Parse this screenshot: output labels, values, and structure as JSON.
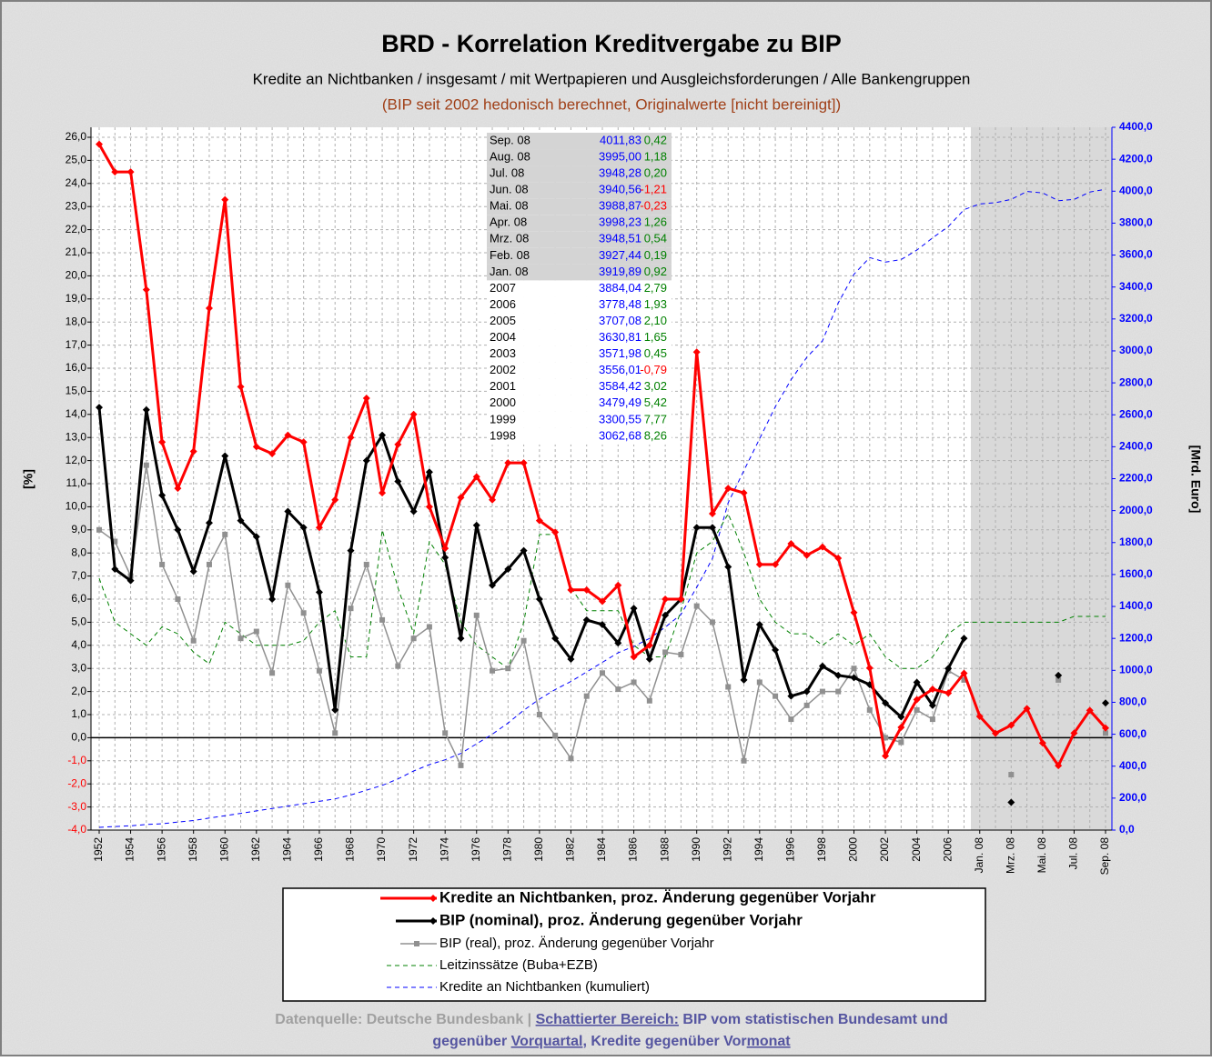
{
  "chart_data": {
    "type": "line",
    "title": "BRD - Korrelation Kreditvergabe zu BIP",
    "subtitle": "Kredite an Nichtbanken / insgesamt / mit Wertpapieren und Ausgleichsforderungen / Alle Bankengruppen",
    "subtitle2": "(BIP seit 2002 hedonisch berechnet, Originalwerte [nicht bereinigt])",
    "y_label": "[%]",
    "y2_label": "[Mrd. Euro]",
    "categories": [
      "1952",
      null,
      "1954",
      null,
      "1956",
      null,
      "1958",
      null,
      "1960",
      null,
      "1962",
      null,
      "1964",
      null,
      "1966",
      null,
      "1968",
      null,
      "1970",
      null,
      "1972",
      null,
      "1974",
      null,
      "1976",
      null,
      "1978",
      null,
      "1980",
      null,
      "1982",
      null,
      "1984",
      null,
      "1986",
      null,
      "1988",
      null,
      "1990",
      null,
      "1992",
      null,
      "1994",
      null,
      "1996",
      null,
      "1998",
      null,
      "2000",
      null,
      "2002",
      null,
      "2004",
      null,
      "2006",
      null,
      "Jan. 08",
      null,
      "Mrz. 08",
      null,
      "Mai. 08",
      null,
      "Jul. 08",
      null,
      "Sep. 08"
    ],
    "ylim": [
      -4,
      26
    ],
    "yticks": [
      {
        "value": -4,
        "label": "-4,0"
      },
      {
        "value": -3,
        "label": "-3,0"
      },
      {
        "value": -2,
        "label": "-2,0"
      },
      {
        "value": -1,
        "label": "-1,0"
      },
      {
        "value": 0,
        "label": "0,0"
      },
      {
        "value": 1,
        "label": "1,0"
      },
      {
        "value": 2,
        "label": "2,0"
      },
      {
        "value": 3,
        "label": "3,0"
      },
      {
        "value": 4,
        "label": "4,0"
      },
      {
        "value": 5,
        "label": "5,0"
      },
      {
        "value": 6,
        "label": "6,0"
      },
      {
        "value": 7,
        "label": "7,0"
      },
      {
        "value": 8,
        "label": "8,0"
      },
      {
        "value": 9,
        "label": "9,0"
      },
      {
        "value": 10,
        "label": "10,0"
      },
      {
        "value": 11,
        "label": "11,0"
      },
      {
        "value": 12,
        "label": "12,0"
      },
      {
        "value": 13,
        "label": "13,0"
      },
      {
        "value": 14,
        "label": "14,0"
      },
      {
        "value": 15,
        "label": "15,0"
      },
      {
        "value": 16,
        "label": "16,0"
      },
      {
        "value": 17,
        "label": "17,0"
      },
      {
        "value": 18,
        "label": "18,0"
      },
      {
        "value": 19,
        "label": "19,0"
      },
      {
        "value": 20,
        "label": "20,0"
      },
      {
        "value": 21,
        "label": "21,0"
      },
      {
        "value": 22,
        "label": "22,0"
      },
      {
        "value": 23,
        "label": "23,0"
      },
      {
        "value": 24,
        "label": "24,0"
      },
      {
        "value": 25,
        "label": "25,0"
      },
      {
        "value": 26,
        "label": "26,0"
      }
    ],
    "y2lim": [
      0,
      4400
    ],
    "y2ticks": [
      {
        "value": 0,
        "label": "0,0"
      },
      {
        "value": 200,
        "label": "200,0"
      },
      {
        "value": 400,
        "label": "400,0"
      },
      {
        "value": 600,
        "label": "600,0"
      },
      {
        "value": 800,
        "label": "800,0"
      },
      {
        "value": 1000,
        "label": "1000,0"
      },
      {
        "value": 1200,
        "label": "1200,0"
      },
      {
        "value": 1400,
        "label": "1400,0"
      },
      {
        "value": 1600,
        "label": "1600,0"
      },
      {
        "value": 1800,
        "label": "1800,0"
      },
      {
        "value": 2000,
        "label": "2000,0"
      },
      {
        "value": 2200,
        "label": "2200,0"
      },
      {
        "value": 2400,
        "label": "2400,0"
      },
      {
        "value": 2600,
        "label": "2600,0"
      },
      {
        "value": 2800,
        "label": "2800,0"
      },
      {
        "value": 3000,
        "label": "3000,0"
      },
      {
        "value": 3200,
        "label": "3200,0"
      },
      {
        "value": 3400,
        "label": "3400,0"
      },
      {
        "value": 3600,
        "label": "3600,0"
      },
      {
        "value": 3800,
        "label": "3800,0"
      },
      {
        "value": 4000,
        "label": "4000,0"
      },
      {
        "value": 4200,
        "label": "4200,0"
      },
      {
        "value": 4400,
        "label": "4400,0"
      }
    ],
    "grid": true,
    "series": [
      {
        "name": "Kredite an Nichtbanken, proz. Änderung gegenüber Vorjahr",
        "color": "#ff0000",
        "width": 3,
        "marker": "diamond",
        "dashed": false,
        "values": [
          25.7,
          24.5,
          24.5,
          19.4,
          12.8,
          10.8,
          12.4,
          18.6,
          23.3,
          15.2,
          12.6,
          12.3,
          13.1,
          12.8,
          9.1,
          10.3,
          13.0,
          14.7,
          10.6,
          12.7,
          14.0,
          10.0,
          8.2,
          10.4,
          11.3,
          10.3,
          11.9,
          11.9,
          9.4,
          8.9,
          6.4,
          6.4,
          5.9,
          6.6,
          3.5,
          4.0,
          6.0,
          6.0,
          16.7,
          9.7,
          10.8,
          10.6,
          7.5,
          7.5,
          8.4,
          7.9,
          8.26,
          7.77,
          5.42,
          3.02,
          -0.79,
          0.45,
          1.65,
          2.1,
          1.93,
          2.79,
          0.92,
          0.19,
          0.54,
          1.26,
          -0.23,
          -1.21,
          0.2,
          1.18,
          0.42
        ]
      },
      {
        "name": "BIP (nominal), proz. Änderung gegenüber Vorjahr",
        "color": "#000000",
        "width": 3,
        "marker": "diamond",
        "dashed": false,
        "values": [
          14.3,
          7.3,
          6.8,
          14.2,
          10.5,
          9.0,
          7.2,
          9.3,
          12.2,
          9.4,
          8.7,
          6.0,
          9.8,
          9.1,
          6.3,
          1.2,
          8.1,
          12.0,
          13.1,
          11.1,
          9.8,
          11.5,
          7.8,
          4.3,
          9.2,
          6.6,
          7.3,
          8.1,
          6.0,
          4.3,
          3.4,
          5.1,
          4.9,
          4.1,
          5.6,
          3.4,
          5.3,
          6.0,
          9.1,
          9.1,
          7.4,
          2.5,
          4.9,
          3.8,
          1.8,
          2.0,
          3.1,
          2.7,
          2.6,
          2.3,
          1.5,
          0.9,
          2.4,
          1.4,
          3.0,
          4.3,
          null,
          null,
          -2.8,
          null,
          null,
          2.7,
          null,
          null,
          1.5
        ]
      },
      {
        "name": "BIP (real), proz. Änderung gegenüber Vorjahr",
        "color": "#909090",
        "width": 1.5,
        "marker": "square",
        "dashed": false,
        "values": [
          9.0,
          8.5,
          7.0,
          11.8,
          7.5,
          6.0,
          4.2,
          7.5,
          8.8,
          4.3,
          4.6,
          2.8,
          6.6,
          5.4,
          2.9,
          0.2,
          5.6,
          7.5,
          5.1,
          3.1,
          4.3,
          4.8,
          0.2,
          -1.2,
          5.3,
          2.9,
          3.0,
          4.2,
          1.0,
          0.1,
          -0.9,
          1.8,
          2.8,
          2.1,
          2.4,
          1.6,
          3.7,
          3.6,
          5.7,
          5.0,
          2.2,
          -1.0,
          2.4,
          1.8,
          0.8,
          1.4,
          2.0,
          2.0,
          3.0,
          1.2,
          0.0,
          -0.2,
          1.2,
          0.8,
          2.9,
          2.5,
          null,
          null,
          -1.6,
          null,
          null,
          2.5,
          null,
          null,
          0.2
        ]
      },
      {
        "name": "Leitzinssätze (Buba+EZB)",
        "color": "#008000",
        "width": 1,
        "marker": "none",
        "dashed": true,
        "values": [
          6.9,
          5.0,
          4.5,
          4.0,
          4.8,
          4.5,
          3.7,
          3.2,
          5.0,
          4.5,
          4.0,
          4.0,
          4.0,
          4.2,
          5.0,
          5.5,
          3.5,
          3.5,
          9.0,
          6.5,
          4.5,
          8.5,
          7.5,
          5.0,
          4.0,
          3.5,
          3.0,
          5.0,
          8.8,
          8.8,
          6.5,
          5.5,
          5.5,
          5.5,
          4.0,
          3.5,
          3.5,
          5.5,
          8.0,
          8.5,
          9.7,
          8.0,
          6.0,
          5.0,
          4.5,
          4.5,
          4.0,
          4.5,
          4.0,
          4.5,
          3.5,
          3.0,
          3.0,
          3.5,
          4.5,
          5.0,
          5.0,
          5.0,
          5.0,
          5.0,
          5.0,
          5.0,
          5.25,
          5.25,
          5.25
        ]
      },
      {
        "name": "Kredite an Nichtbanken (kumuliert)",
        "color": "#0000ff",
        "width": 1,
        "marker": "none",
        "dashed": true,
        "axis": "y2",
        "values": [
          17,
          22,
          27,
          35,
          40,
          50,
          60,
          75,
          90,
          105,
          120,
          135,
          150,
          165,
          180,
          195,
          220,
          250,
          280,
          320,
          370,
          410,
          440,
          480,
          540,
          600,
          670,
          750,
          820,
          880,
          930,
          990,
          1050,
          1110,
          1150,
          1200,
          1270,
          1350,
          1520,
          1700,
          2050,
          2250,
          2450,
          2650,
          2820,
          2960,
          3062.68,
          3300.55,
          3479.49,
          3584.42,
          3556.01,
          3571.98,
          3630.81,
          3707.08,
          3778.48,
          3884.04,
          3919.89,
          3927.44,
          3948.51,
          3998.23,
          3988.87,
          3940.56,
          3948.28,
          3995.0,
          4011.83
        ]
      }
    ],
    "data_table": {
      "rows": [
        [
          "Sep. 08",
          "4011,83",
          "0,42"
        ],
        [
          "Aug. 08",
          "3995,00",
          "1,18"
        ],
        [
          "Jul. 08",
          "3948,28",
          "0,20"
        ],
        [
          "Jun. 08",
          "3940,56",
          "-1,21"
        ],
        [
          "Mai. 08",
          "3988,87",
          "-0,23"
        ],
        [
          "Apr. 08",
          "3998,23",
          "1,26"
        ],
        [
          "Mrz. 08",
          "3948,51",
          "0,54"
        ],
        [
          "Feb. 08",
          "3927,44",
          "0,19"
        ],
        [
          "Jan. 08",
          "3919,89",
          "0,92"
        ],
        [
          "2007",
          "3884,04",
          "2,79"
        ],
        [
          "2006",
          "3778,48",
          "1,93"
        ],
        [
          "2005",
          "3707,08",
          "2,10"
        ],
        [
          "2004",
          "3630,81",
          "1,65"
        ],
        [
          "2003",
          "3571,98",
          "0,45"
        ],
        [
          "2002",
          "3556,01",
          "-0,79"
        ],
        [
          "2001",
          "3584,42",
          "3,02"
        ],
        [
          "2000",
          "3479,49",
          "5,42"
        ],
        [
          "1999",
          "3300,55",
          "7,77"
        ],
        [
          "1998",
          "3062,68",
          "8,26"
        ]
      ]
    },
    "footer": {
      "line1": [
        {
          "text": "Datenquelle: Deutsche Bundesbank | ",
          "color": "#a0a0a0",
          "underline": false
        },
        {
          "text": "Schattierter Bereich:",
          "color": "#5555a0",
          "underline": true
        },
        {
          "text": " BIP vom statistischen Bundesamt und",
          "color": "#5555a0",
          "underline": false
        }
      ],
      "line2": [
        {
          "text": "gegenüber ",
          "color": "#5555a0",
          "underline": false
        },
        {
          "text": "Vorquartal",
          "color": "#5555a0",
          "underline": true
        },
        {
          "text": ", Kredite gegenüber Vor",
          "color": "#5555a0",
          "underline": false
        },
        {
          "text": "monat",
          "color": "#5555a0",
          "underline": true
        }
      ]
    }
  }
}
